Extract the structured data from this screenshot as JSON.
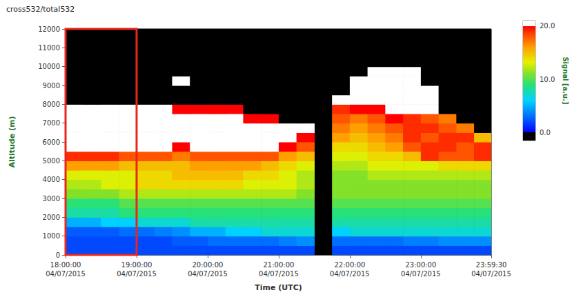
{
  "chart_data": {
    "type": "heatmap",
    "title": "cross532/total532",
    "x_label": "Time (UTC)",
    "y_label": "Altitude (m)",
    "color_label": "Signal [a.u.]",
    "xlim": [
      "18:00:00",
      "23:59:30"
    ],
    "xticks": [
      {
        "value": "18:00:00",
        "label": "18:00:00\n04/07/2015"
      },
      {
        "value": "19:00:00",
        "label": "19:00:00\n04/07/2015"
      },
      {
        "value": "20:00:00",
        "label": "20:00:00\n04/07/2015"
      },
      {
        "value": "21:00:00",
        "label": "21:00:00\n04/07/2015"
      },
      {
        "value": "22:00:00",
        "label": "22:00:00\n04/07/2015"
      },
      {
        "value": "23:00:00",
        "label": "23:00:00\n04/07/2015"
      },
      {
        "value": "23:59:30",
        "label": "23:59:30\n04/07/2015"
      }
    ],
    "ylim": [
      0,
      12000
    ],
    "yticks": [
      0,
      1000,
      2000,
      3000,
      4000,
      5000,
      6000,
      7000,
      8000,
      9000,
      10000,
      11000,
      12000
    ],
    "color_range": [
      -1.5,
      21
    ],
    "color_ticks": [
      {
        "value": 0,
        "label": "0.0"
      },
      {
        "value": 10,
        "label": "10.0"
      },
      {
        "value": 20,
        "label": "20.0"
      }
    ],
    "highlight": {
      "x": [
        "18:00:00",
        "19:00:00"
      ],
      "y": [
        0,
        12000
      ],
      "color": "#e8261c"
    },
    "x_bins": [
      "18:00:00",
      "18:15:00",
      "18:30:00",
      "18:45:00",
      "19:00:00",
      "19:15:00",
      "19:30:00",
      "19:45:00",
      "20:00:00",
      "20:15:00",
      "20:30:00",
      "20:45:00",
      "21:00:00",
      "21:15:00",
      "21:30:00",
      "21:45:00",
      "22:00:00",
      "22:15:00",
      "22:30:00",
      "22:45:00",
      "23:00:00",
      "23:15:00",
      "23:30:00",
      "23:45:00",
      "23:59:30"
    ],
    "y_bins": [
      0,
      500,
      1000,
      1500,
      2000,
      2500,
      3000,
      3500,
      4000,
      4500,
      5000,
      5500,
      6000,
      6500,
      7000,
      7500,
      8000,
      8500,
      9000,
      9500,
      10000,
      10500,
      11000,
      11500,
      12000
    ],
    "cells": [
      [
        2,
        2,
        2,
        2,
        2,
        2,
        2,
        2,
        2,
        2,
        2,
        2,
        2,
        2,
        null,
        2,
        2,
        2,
        2,
        2,
        2,
        2,
        2,
        2
      ],
      [
        2,
        2,
        2,
        2,
        2,
        2,
        2.5,
        2.5,
        3,
        3,
        3,
        3,
        3.5,
        4,
        null,
        3,
        3,
        3,
        3,
        3.5,
        3.5,
        4,
        4,
        4
      ],
      [
        2.5,
        2.5,
        2.5,
        3,
        3,
        3.5,
        4,
        5,
        5,
        6,
        6,
        7,
        7,
        7,
        null,
        6,
        7,
        7,
        7,
        7,
        7,
        7,
        7,
        7
      ],
      [
        5,
        5,
        6,
        6,
        7,
        7,
        7,
        8,
        8,
        8,
        8,
        8,
        8,
        8,
        null,
        8,
        8,
        8,
        8,
        8,
        8,
        8,
        8,
        8
      ],
      [
        8,
        8,
        8,
        9,
        9,
        9,
        9,
        9,
        9,
        9,
        9,
        9,
        9,
        9,
        null,
        9,
        9,
        9,
        9,
        9,
        9,
        9,
        9,
        9
      ],
      [
        9,
        9,
        9,
        10,
        10,
        10,
        10,
        10,
        10,
        10,
        10,
        10,
        10,
        10,
        null,
        10,
        10,
        10,
        10,
        10,
        10,
        10,
        10,
        10
      ],
      [
        11,
        11,
        11,
        12,
        12,
        12,
        12,
        12,
        12,
        12,
        12,
        12,
        12,
        11,
        null,
        11,
        11,
        11,
        11,
        11,
        11,
        11,
        11,
        11
      ],
      [
        12,
        12,
        13,
        13,
        14,
        14,
        14,
        14,
        14,
        14,
        13,
        13,
        13,
        12,
        null,
        11,
        11,
        11,
        11,
        11,
        11,
        11,
        11,
        11
      ],
      [
        13,
        13,
        13,
        13,
        14,
        14,
        15,
        15,
        15,
        15,
        14,
        14,
        13,
        12,
        null,
        11,
        11,
        12,
        12,
        12,
        12,
        12,
        12,
        12
      ],
      [
        16,
        16,
        16,
        15,
        15,
        15,
        15,
        16,
        16,
        16,
        16,
        15,
        14,
        13,
        null,
        12,
        12,
        13,
        13,
        13,
        13,
        14,
        14,
        14
      ],
      [
        19,
        19,
        19,
        18,
        18,
        18,
        17,
        18,
        18,
        18,
        18,
        18,
        16,
        15,
        null,
        13,
        13,
        14,
        14,
        15,
        19,
        18,
        18,
        19
      ],
      [
        21,
        21,
        21,
        21,
        21,
        21,
        20,
        21,
        21,
        21,
        21,
        21,
        20,
        18,
        null,
        14,
        14,
        15,
        16,
        18,
        19,
        19,
        18,
        19
      ],
      [
        21,
        21,
        21,
        21,
        21,
        21,
        21,
        21,
        21,
        21,
        21,
        21,
        21,
        20,
        null,
        16,
        15,
        16,
        17,
        19,
        18,
        19,
        19,
        15
      ],
      [
        21,
        21,
        21,
        21,
        21,
        21,
        21,
        21,
        21,
        21,
        21,
        21,
        21,
        21,
        null,
        17,
        16,
        17,
        18,
        19,
        19,
        18,
        17,
        -1
      ],
      [
        21,
        21,
        21,
        21,
        21,
        21,
        21,
        21,
        21,
        21,
        20,
        20,
        -1,
        -1,
        null,
        18,
        17,
        18,
        20,
        19,
        18,
        17,
        -1,
        -1
      ],
      [
        21,
        21,
        21,
        21,
        21,
        21,
        20,
        20,
        20,
        20,
        -1,
        -1,
        -1,
        -1,
        null,
        19,
        20,
        20,
        21,
        21,
        21,
        -1,
        -1,
        -1
      ],
      [
        -1,
        -1,
        -1,
        -1,
        -1,
        -1,
        -1,
        -1,
        -1,
        -1,
        -1,
        -1,
        -1,
        -1,
        null,
        21,
        21,
        21,
        21,
        21,
        21,
        -1,
        -1,
        -1
      ],
      [
        -1,
        -1,
        -1,
        -1,
        -1,
        -1,
        -1,
        -1,
        -1,
        -1,
        -1,
        -1,
        -1,
        -1,
        null,
        -1,
        21,
        21,
        21,
        21,
        21,
        -1,
        -1,
        -1
      ],
      [
        -1,
        -1,
        -1,
        -1,
        -1,
        -1,
        21,
        -1,
        -1,
        -1,
        -1,
        -1,
        -1,
        -1,
        null,
        -1,
        21,
        21,
        21,
        21,
        -1,
        -1,
        -1,
        -1
      ],
      [
        -1,
        -1,
        -1,
        -1,
        -1,
        -1,
        -1,
        -1,
        -1,
        -1,
        -1,
        -1,
        -1,
        -1,
        null,
        -1,
        -1,
        21,
        21,
        21,
        -1,
        -1,
        -1,
        -1
      ],
      [
        -1,
        -1,
        -1,
        -1,
        -1,
        -1,
        -1,
        -1,
        -1,
        -1,
        -1,
        -1,
        -1,
        -1,
        null,
        -1,
        -1,
        -1,
        -1,
        -1,
        -1,
        -1,
        -1,
        -1
      ],
      [
        -1,
        -1,
        -1,
        -1,
        -1,
        -1,
        -1,
        -1,
        -1,
        -1,
        -1,
        -1,
        -1,
        -1,
        null,
        -1,
        -1,
        -1,
        -1,
        -1,
        -1,
        -1,
        -1,
        -1
      ],
      [
        -1,
        -1,
        -1,
        -1,
        -1,
        -1,
        -1,
        -1,
        -1,
        -1,
        -1,
        -1,
        -1,
        -1,
        null,
        -1,
        -1,
        -1,
        -1,
        -1,
        -1,
        -1,
        -1,
        -1
      ],
      [
        -1,
        -1,
        -1,
        -1,
        -1,
        -1,
        -1,
        -1,
        -1,
        -1,
        -1,
        -1,
        -1,
        -1,
        null,
        -1,
        -1,
        -1,
        -1,
        -1,
        -1,
        -1,
        -1,
        -1
      ]
    ]
  }
}
